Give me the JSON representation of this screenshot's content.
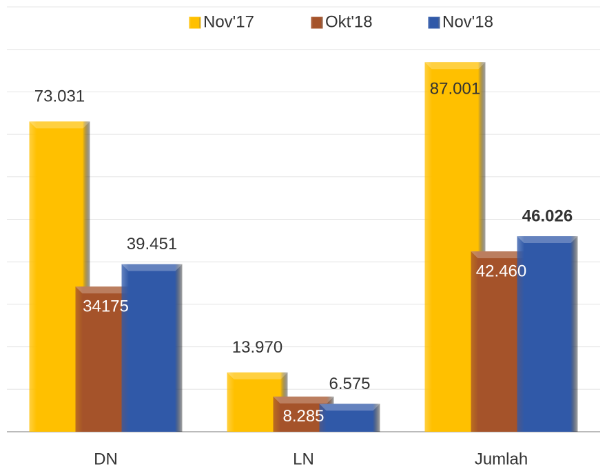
{
  "chart_data": {
    "type": "bar",
    "categories": [
      "DN",
      "LN",
      "Jumlah"
    ],
    "series": [
      {
        "name": "Nov'17",
        "color": "#ffc000",
        "values": [
          73031,
          13970,
          87001
        ],
        "value_labels": [
          "73.031",
          "13.970",
          "87.001"
        ]
      },
      {
        "name": "Okt'18",
        "color": "#a5532a",
        "values": [
          34175,
          8285,
          42460
        ],
        "value_labels": [
          "34175",
          "8.285",
          "42.460"
        ]
      },
      {
        "name": "Nov'18",
        "color": "#3059a8",
        "values": [
          39451,
          6575,
          46026
        ],
        "value_labels": [
          "39.451",
          "6.575",
          "46.026"
        ]
      }
    ],
    "ylim": [
      0,
      100000
    ],
    "yticks": [
      0,
      10000,
      20000,
      30000,
      40000,
      50000,
      60000,
      70000,
      80000,
      90000,
      100000
    ],
    "grid": true,
    "legend": "top"
  }
}
